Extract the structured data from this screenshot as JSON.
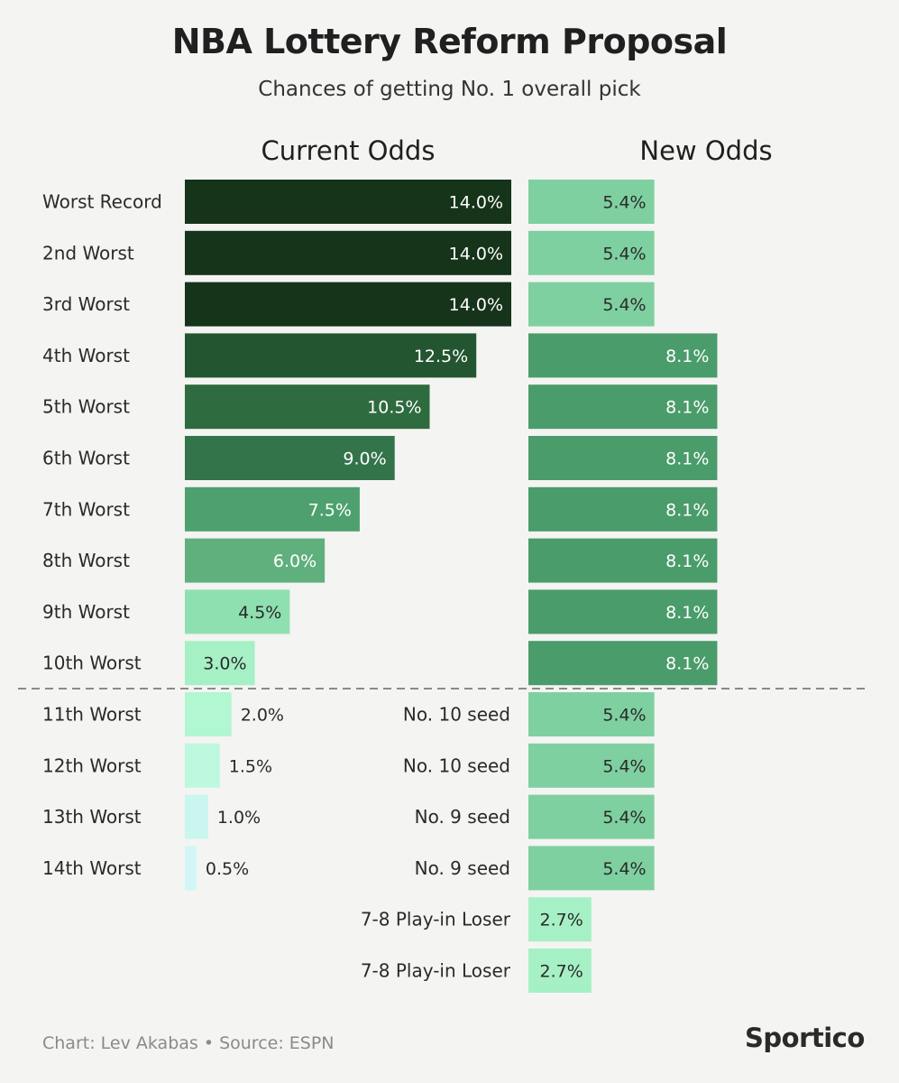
{
  "chart_data": {
    "type": "bar",
    "title": "NBA Lottery Reform Proposal",
    "subtitle": "Chances of getting No. 1 overall pick",
    "current": {
      "header": "Current Odds",
      "categories": [
        "Worst Record",
        "2nd Worst",
        "3rd Worst",
        "4th Worst",
        "5th Worst",
        "6th Worst",
        "7th Worst",
        "8th Worst",
        "9th Worst",
        "10th Worst",
        "11th Worst",
        "12th Worst",
        "13th Worst",
        "14th Worst"
      ],
      "values": [
        14.0,
        14.0,
        14.0,
        12.5,
        10.5,
        9.0,
        7.5,
        6.0,
        4.5,
        3.0,
        2.0,
        1.5,
        1.0,
        0.5
      ],
      "value_labels": [
        "14.0%",
        "14.0%",
        "14.0%",
        "12.5%",
        "10.5%",
        "9.0%",
        "7.5%",
        "6.0%",
        "4.5%",
        "3.0%",
        "2.0%",
        "1.5%",
        "1.0%",
        "0.5%"
      ],
      "colors": [
        "#16341a",
        "#16341a",
        "#16341a",
        "#235530",
        "#2e6b3e",
        "#33744a",
        "#4ea16e",
        "#5fb07d",
        "#8fe0b0",
        "#a6f0c6",
        "#b0f7d2",
        "#bef8de",
        "#c9f6ee",
        "#d2f6f8"
      ]
    },
    "new": {
      "header": "New Odds",
      "categories": [
        "",
        "",
        "",
        "",
        "",
        "",
        "",
        "",
        "",
        "",
        "No. 10 seed",
        "No. 10 seed",
        "No. 9 seed",
        "No. 9 seed",
        "7-8 Play-in Loser",
        "7-8 Play-in Loser"
      ],
      "values": [
        5.4,
        5.4,
        5.4,
        8.1,
        8.1,
        8.1,
        8.1,
        8.1,
        8.1,
        8.1,
        5.4,
        5.4,
        5.4,
        5.4,
        2.7,
        2.7
      ],
      "value_labels": [
        "5.4%",
        "5.4%",
        "5.4%",
        "8.1%",
        "8.1%",
        "8.1%",
        "8.1%",
        "8.1%",
        "8.1%",
        "8.1%",
        "5.4%",
        "5.4%",
        "5.4%",
        "5.4%",
        "2.7%",
        "2.7%"
      ],
      "colors": [
        "#7fd0a0",
        "#7fd0a0",
        "#7fd0a0",
        "#4a9c6b",
        "#4a9c6b",
        "#4a9c6b",
        "#4a9c6b",
        "#4a9c6b",
        "#4a9c6b",
        "#4a9c6b",
        "#7fd0a0",
        "#7fd0a0",
        "#7fd0a0",
        "#7fd0a0",
        "#a6f0c6",
        "#a6f0c6"
      ]
    },
    "xlim": [
      0,
      14
    ],
    "separator": "dashed line after 10th Worst"
  },
  "footer": {
    "credit": "Chart: Lev Akabas • Source: ESPN",
    "brand": "Sportico"
  }
}
